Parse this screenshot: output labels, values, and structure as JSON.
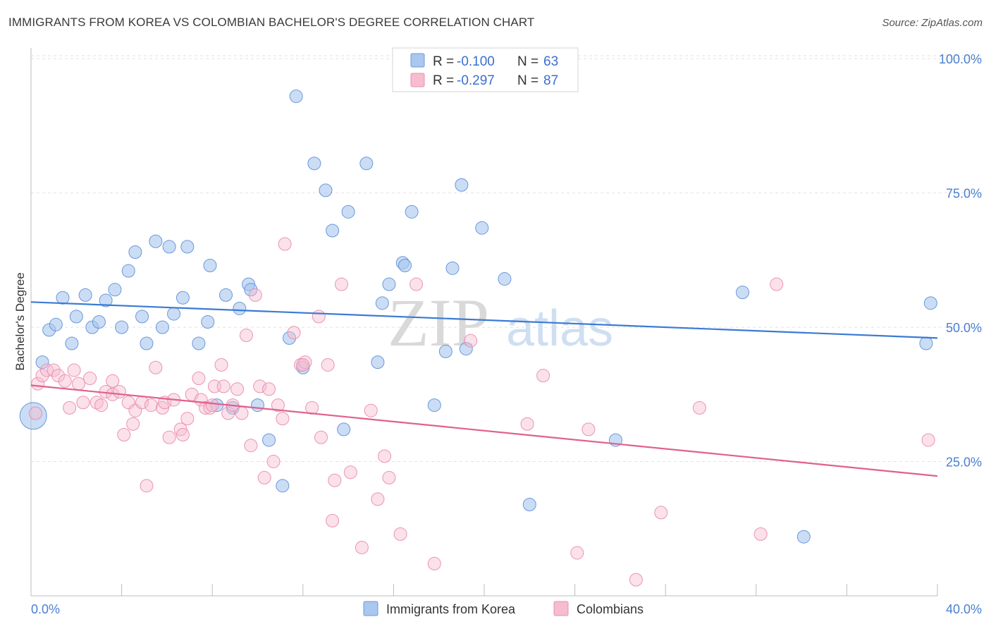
{
  "header": {
    "title": "IMMIGRANTS FROM KOREA VS COLOMBIAN BACHELOR'S DEGREE CORRELATION CHART",
    "source": "Source: ZipAtlas.com"
  },
  "watermark": {
    "zip": "ZIP",
    "atlas": "atlas"
  },
  "legend": {
    "r_label": "R =",
    "n_label": "N =",
    "rows": [
      {
        "r": "-0.100",
        "n": "63",
        "color": "#a9c7ef"
      },
      {
        "r": "-0.297",
        "n": "87",
        "color": "#f7bcd0"
      }
    ]
  },
  "bottom_legend": [
    "Immigrants from Korea",
    "Colombians"
  ],
  "chart_data": {
    "type": "scatter",
    "title": "IMMIGRANTS FROM KOREA VS COLOMBIAN BACHELOR'S DEGREE CORRELATION CHART",
    "xlabel": "",
    "ylabel": "Bachelor's Degree",
    "xlim": [
      0,
      40
    ],
    "ylim": [
      0,
      102
    ],
    "x_tick_labels": [
      "0.0%",
      "40.0%"
    ],
    "y_ticks": [
      25,
      50,
      75,
      100
    ],
    "y_tick_labels": [
      "25.0%",
      "50.0%",
      "75.0%",
      "100.0%"
    ],
    "grid": "horizontal dashed",
    "legend_position": "top-center",
    "series": [
      {
        "name": "Immigrants from Korea",
        "color": "#a9c7ef",
        "edge": "#5b8fd6",
        "trend_color": "#3b7bd4",
        "trend": {
          "x": [
            0,
            40
          ],
          "y": [
            54.7,
            48.0
          ]
        },
        "points": [
          [
            0.5,
            43.5
          ],
          [
            0.8,
            49.5
          ],
          [
            1.1,
            50.5
          ],
          [
            1.4,
            55.5
          ],
          [
            1.8,
            47.0
          ],
          [
            2.0,
            52.0
          ],
          [
            2.4,
            56.0
          ],
          [
            2.7,
            50.0
          ],
          [
            3.0,
            51.0
          ],
          [
            3.3,
            55.0
          ],
          [
            3.7,
            57.0
          ],
          [
            4.0,
            50.0
          ],
          [
            4.3,
            60.5
          ],
          [
            4.6,
            64.0
          ],
          [
            4.9,
            52.0
          ],
          [
            5.1,
            47.0
          ],
          [
            5.5,
            66.0
          ],
          [
            5.8,
            50.0
          ],
          [
            6.1,
            65.0
          ],
          [
            6.3,
            52.5
          ],
          [
            6.9,
            65.0
          ],
          [
            6.7,
            55.5
          ],
          [
            7.4,
            47.0
          ],
          [
            7.8,
            51.0
          ],
          [
            7.9,
            61.5
          ],
          [
            8.2,
            35.5
          ],
          [
            8.6,
            56.0
          ],
          [
            8.9,
            35.0
          ],
          [
            9.2,
            53.5
          ],
          [
            9.6,
            58.0
          ],
          [
            9.7,
            57.0
          ],
          [
            10.0,
            35.5
          ],
          [
            10.5,
            29.0
          ],
          [
            11.1,
            20.5
          ],
          [
            11.4,
            48.0
          ],
          [
            11.7,
            93.0
          ],
          [
            12.0,
            42.5
          ],
          [
            12.5,
            80.5
          ],
          [
            13.0,
            75.5
          ],
          [
            13.3,
            68.0
          ],
          [
            13.8,
            31.0
          ],
          [
            14.0,
            71.5
          ],
          [
            14.8,
            80.5
          ],
          [
            15.3,
            43.5
          ],
          [
            15.5,
            54.5
          ],
          [
            15.8,
            58.0
          ],
          [
            16.4,
            62.0
          ],
          [
            16.5,
            61.5
          ],
          [
            16.8,
            71.5
          ],
          [
            17.8,
            35.5
          ],
          [
            18.3,
            45.5
          ],
          [
            18.6,
            61.0
          ],
          [
            19.0,
            76.5
          ],
          [
            19.2,
            46.0
          ],
          [
            19.9,
            68.5
          ],
          [
            20.9,
            59.0
          ],
          [
            22.0,
            17.0
          ],
          [
            25.8,
            29.0
          ],
          [
            31.4,
            56.5
          ],
          [
            34.1,
            11.0
          ],
          [
            39.5,
            47.0
          ],
          [
            39.7,
            54.5
          ],
          [
            0.1,
            33.5
          ]
        ]
      },
      {
        "name": "Colombians",
        "color": "#f7bcd0",
        "edge": "#e98aa9",
        "trend_color": "#e0608e",
        "trend": {
          "x": [
            0,
            40
          ],
          "y": [
            39.2,
            22.3
          ]
        },
        "points": [
          [
            0.3,
            39.5
          ],
          [
            0.5,
            41.0
          ],
          [
            0.7,
            42.0
          ],
          [
            1.0,
            42.0
          ],
          [
            1.2,
            41.0
          ],
          [
            1.5,
            40.0
          ],
          [
            1.7,
            35.0
          ],
          [
            1.9,
            42.0
          ],
          [
            2.1,
            39.5
          ],
          [
            2.3,
            36.0
          ],
          [
            2.6,
            40.5
          ],
          [
            2.9,
            36.0
          ],
          [
            3.1,
            35.5
          ],
          [
            3.3,
            38.0
          ],
          [
            3.6,
            40.0
          ],
          [
            3.6,
            37.5
          ],
          [
            3.9,
            38.0
          ],
          [
            4.1,
            30.0
          ],
          [
            4.3,
            36.0
          ],
          [
            4.5,
            32.0
          ],
          [
            4.6,
            34.5
          ],
          [
            4.9,
            36.0
          ],
          [
            5.1,
            20.5
          ],
          [
            5.3,
            35.5
          ],
          [
            5.5,
            42.5
          ],
          [
            5.8,
            35.0
          ],
          [
            5.9,
            36.0
          ],
          [
            6.1,
            29.5
          ],
          [
            6.3,
            36.5
          ],
          [
            6.6,
            31.0
          ],
          [
            6.7,
            30.0
          ],
          [
            6.9,
            33.0
          ],
          [
            7.1,
            37.5
          ],
          [
            7.4,
            40.5
          ],
          [
            7.5,
            36.5
          ],
          [
            7.7,
            35.0
          ],
          [
            7.9,
            35.0
          ],
          [
            8.1,
            39.0
          ],
          [
            8.4,
            43.0
          ],
          [
            8.5,
            39.0
          ],
          [
            8.7,
            34.0
          ],
          [
            8.9,
            35.5
          ],
          [
            9.1,
            38.5
          ],
          [
            9.3,
            34.0
          ],
          [
            9.5,
            48.5
          ],
          [
            9.7,
            28.0
          ],
          [
            9.9,
            56.0
          ],
          [
            10.1,
            39.0
          ],
          [
            10.3,
            22.0
          ],
          [
            10.5,
            38.5
          ],
          [
            10.7,
            25.0
          ],
          [
            10.9,
            35.5
          ],
          [
            11.1,
            33.0
          ],
          [
            11.2,
            65.5
          ],
          [
            11.6,
            49.0
          ],
          [
            11.9,
            43.0
          ],
          [
            12.1,
            43.5
          ],
          [
            12.4,
            35.0
          ],
          [
            12.7,
            52.0
          ],
          [
            12.8,
            29.5
          ],
          [
            13.1,
            43.0
          ],
          [
            13.3,
            14.0
          ],
          [
            13.4,
            21.5
          ],
          [
            13.7,
            58.0
          ],
          [
            14.1,
            23.0
          ],
          [
            14.6,
            9.0
          ],
          [
            15.0,
            34.5
          ],
          [
            15.3,
            18.0
          ],
          [
            15.6,
            26.0
          ],
          [
            15.8,
            22.0
          ],
          [
            16.3,
            11.5
          ],
          [
            17.0,
            58.0
          ],
          [
            17.8,
            6.0
          ],
          [
            19.4,
            47.5
          ],
          [
            21.9,
            32.0
          ],
          [
            22.6,
            41.0
          ],
          [
            24.1,
            8.0
          ],
          [
            24.6,
            31.0
          ],
          [
            26.7,
            3.0
          ],
          [
            27.8,
            15.5
          ],
          [
            29.5,
            35.0
          ],
          [
            32.2,
            11.5
          ],
          [
            32.9,
            58.0
          ],
          [
            39.6,
            29.0
          ],
          [
            0.2,
            34.0
          ],
          [
            12.0,
            43.0
          ],
          [
            8.0,
            35.5
          ]
        ]
      }
    ]
  }
}
